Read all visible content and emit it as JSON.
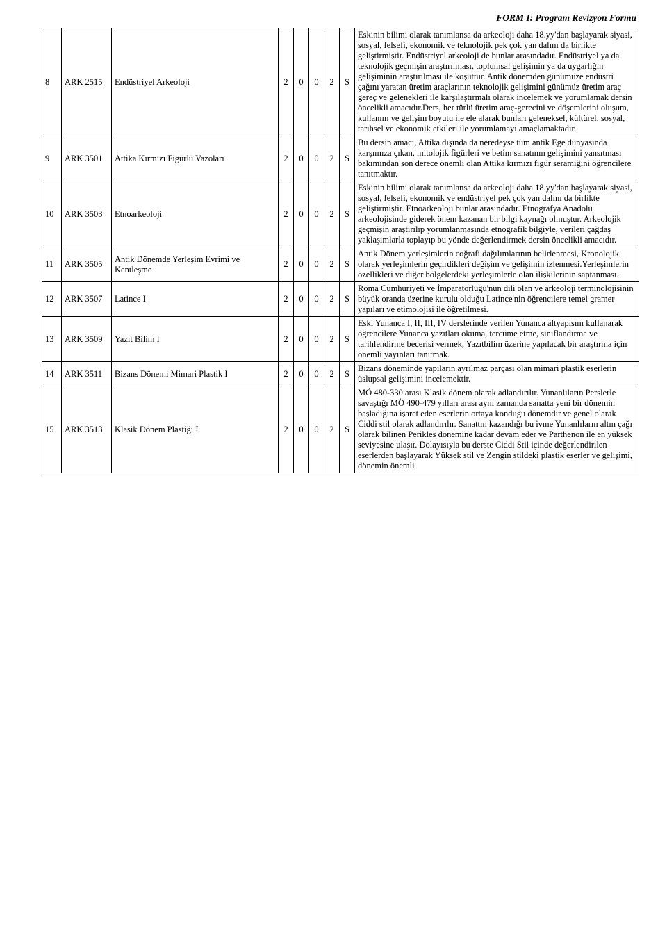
{
  "header": "FORM I: Program Revizyon Formu",
  "columns": {
    "a": "2",
    "b": "0",
    "c": "0",
    "d": "2",
    "e": "S"
  },
  "rows": [
    {
      "n": "8",
      "code": "ARK 2515",
      "title": "Endüstriyel Arkeoloji",
      "desc": "Eskinin bilimi olarak tanımlansa da arkeoloji daha 18.yy'dan başlayarak siyasi, sosyal, felsefi, ekonomik ve teknolojik pek çok yan dalını da birlikte geliştirmiştir. Endüstriyel arkeoloji de bunlar arasındadır. Endüstriyel ya da teknolojik geçmişin araştırılması, toplumsal gelişimin ya da uygarlığın gelişiminin araştırılması ile koşuttur. Antik dönemden günümüze endüstri çağını yaratan üretim araçlarının teknolojik gelişimini günümüz üretim araç gereç ve gelenekleri ile karşılaştırmalı olarak incelemek ve yorumlamak dersin öncelikli amacıdır.Ders, her türlü üretim araç-gerecini ve döşemlerini oluşum, kullanım ve gelişim boyutu ile ele alarak bunları geleneksel, kültürel, sosyal, tarihsel ve ekonomik etkileri ile yorumlamayı amaçlamaktadır."
    },
    {
      "n": "9",
      "code": "ARK 3501",
      "title": "Attika Kırmızı Figürlü Vazoları",
      "desc": "Bu dersin amacı, Attika dışında da neredeyse tüm antik Ege dünyasında karşımıza çıkan, mitolojik figürleri ve betim sanatının gelişimini yansıtması bakımından son derece önemli olan Attika kırmızı figür seramiğini öğrencilere tanıtmaktır."
    },
    {
      "n": "10",
      "code": "ARK 3503",
      "title": "Etnoarkeoloji",
      "desc": "Eskinin bilimi olarak tanımlansa da arkeoloji daha 18.yy'dan başlayarak siyasi, sosyal, felsefi, ekonomik ve endüstriyel pek çok yan dalını da birlikte geliştirmiştir. Etnoarkeoloji bunlar arasındadır. Etnografya Anadolu arkeolojisinde giderek önem kazanan bir bilgi kaynağı olmuştur. Arkeolojik geçmişin araştırılıp yorumlanmasında etnografik bilgiyle, verileri çağdaş yaklaşımlarla toplayıp bu yönde değerlendirmek dersin öncelikli amacıdır."
    },
    {
      "n": "11",
      "code": "ARK 3505",
      "title": "Antik Dönemde Yerleşim Evrimi ve Kentleşme",
      "desc": "Antik Dönem yerleşimlerin coğrafi dağılımlarının belirlenmesi, Kronolojik olarak yerleşimlerin geçirdikleri değişim ve gelişimin izlenmesi.Yerleşimlerin özellikleri ve diğer bölgelerdeki yerleşimlerle olan ilişkilerinin saptanması."
    },
    {
      "n": "12",
      "code": "ARK 3507",
      "title": "Latince I",
      "desc": "Roma Cumhuriyeti ve İmparatorluğu'nun dili olan ve arkeoloji terminolojisinin büyük oranda üzerine kurulu olduğu Latince'nin öğrencilere temel gramer yapıları ve etimolojisi ile öğretilmesi."
    },
    {
      "n": "13",
      "code": "ARK 3509",
      "title": "Yazıt Bilim I",
      "desc": "Eski Yunanca I, II, III, IV derslerinde verilen Yunanca altyapısını kullanarak öğrencilere Yunanca yazıtları okuma, tercüme etme, sınıflandırma ve tarihlendirme becerisi vermek, Yazıtbilim üzerine yapılacak bir araştırma için önemli yayınları tanıtmak."
    },
    {
      "n": "14",
      "code": "ARK 3511",
      "title": "Bizans Dönemi Mimari Plastik I",
      "desc": "Bizans döneminde yapıların ayrılmaz parçası olan mimari plastik eserlerin üslupsal gelişimini incelemektir."
    },
    {
      "n": "15",
      "code": "ARK 3513",
      "title": "Klasik Dönem Plastiği I",
      "desc": "MÖ 480-330 arası Klasik dönem olarak adlandırılır. Yunanlıların Perslerle savaştığı MÖ 490-479 yılları arası aynı zamanda sanatta yeni bir dönemin başladığına işaret eden eserlerin ortaya konduğu dönemdir ve genel olarak Ciddi stil olarak adlandırılır. Sanattın kazandığı bu ivme Yunanlıların altın çağı olarak bilinen Perikles dönemine kadar devam eder ve Parthenon ile en yüksek seviyesine ulaşır. Dolayısıyla bu derste Ciddi Stil içinde değerlendirilen eserlerden başlayarak Yüksek stil ve Zengin stildeki plastik eserler ve gelişimi, dönemin önemli"
    }
  ]
}
